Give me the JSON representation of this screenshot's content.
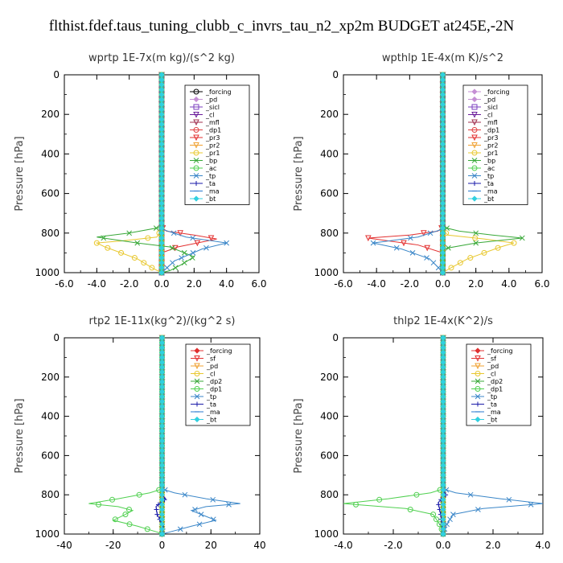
{
  "figure": {
    "title": "flthist.fdef.taus_tuning_clubb_c_invrs_tau_n2_xp2m  BUDGET at245E,-2N"
  },
  "chart_data": [
    {
      "type": "line",
      "title": "wprtp   1E-7x(m kg)/(s^2 kg)",
      "ylabel": "Pressure [hPa]",
      "xlim": [
        -6,
        6
      ],
      "ylim": [
        1000,
        0
      ],
      "xticks": [
        "-6.0",
        "-4.0",
        "-2.0",
        "0.0",
        "2.0",
        "4.0",
        "6.0"
      ],
      "yticks": [
        "0",
        "200",
        "400",
        "600",
        "800",
        "1000"
      ],
      "series": [
        {
          "name": "_forcing",
          "color": "#000000",
          "marker": "circle",
          "x": [
            0,
            0,
            0
          ],
          "y": [
            0,
            500,
            1000
          ]
        },
        {
          "name": "_pd",
          "color": "#c58fd4",
          "marker": "diamond",
          "x": [
            0,
            0,
            0
          ],
          "y": [
            0,
            500,
            1000
          ]
        },
        {
          "name": "_sicl",
          "color": "#7b3fbf",
          "marker": "square",
          "x": [
            0,
            0,
            0
          ],
          "y": [
            0,
            500,
            1000
          ]
        },
        {
          "name": "_cl",
          "color": "#6a1b9a",
          "marker": "tri",
          "x": [
            0,
            0,
            0
          ],
          "y": [
            0,
            500,
            1000
          ]
        },
        {
          "name": "_mfl",
          "color": "#a0304f",
          "marker": "tri",
          "x": [
            0,
            0,
            0
          ],
          "y": [
            0,
            500,
            1000
          ]
        },
        {
          "name": "_dp1",
          "color": "#e04040",
          "marker": "circle",
          "x": [
            0,
            0,
            0
          ],
          "y": [
            0,
            500,
            1000
          ]
        },
        {
          "name": "_pr3",
          "color": "#e33030",
          "marker": "tri",
          "x": [
            0,
            0,
            0.3,
            2.0,
            3.4,
            1.0,
            0,
            0
          ],
          "y": [
            0,
            770,
            790,
            810,
            830,
            870,
            900,
            1000
          ]
        },
        {
          "name": "_pr2",
          "color": "#f0a030",
          "marker": "tri",
          "x": [
            0,
            0,
            0
          ],
          "y": [
            0,
            500,
            1000
          ]
        },
        {
          "name": "_pr1",
          "color": "#e8c830",
          "marker": "circle",
          "x": [
            0,
            0,
            -0.3,
            -2.5,
            -4.0,
            -3.5,
            -1.5,
            -0.5,
            0
          ],
          "y": [
            0,
            780,
            820,
            840,
            850,
            870,
            930,
            980,
            1000
          ]
        },
        {
          "name": "_bp",
          "color": "#38a838",
          "marker": "x",
          "x": [
            0,
            0,
            -2.0,
            -4.0,
            -1.5,
            0.5,
            2.0,
            1.2,
            0.5,
            0
          ],
          "y": [
            0,
            770,
            800,
            820,
            850,
            870,
            920,
            960,
            990,
            1000
          ]
        },
        {
          "name": "_ac",
          "color": "#50d050",
          "marker": "circle",
          "x": [
            0,
            0,
            0
          ],
          "y": [
            0,
            500,
            1000
          ]
        },
        {
          "name": "_tp",
          "color": "#3a86c8",
          "marker": "x",
          "x": [
            0,
            0,
            1.5,
            4.0,
            2.5,
            0.8,
            0
          ],
          "y": [
            0,
            780,
            820,
            850,
            880,
            940,
            1000
          ]
        },
        {
          "name": "_ta",
          "color": "#1a1aa8",
          "marker": "plus",
          "x": [
            0,
            0,
            0
          ],
          "y": [
            0,
            500,
            1000
          ]
        },
        {
          "name": "_ma",
          "color": "#2a7ad0",
          "marker": "dash",
          "x": [
            0,
            0,
            0
          ],
          "y": [
            0,
            500,
            1000
          ]
        },
        {
          "name": "_bt",
          "color": "#30d0e0",
          "marker": "diamond",
          "x": [
            0,
            0,
            0
          ],
          "y": [
            0,
            500,
            1000
          ]
        }
      ]
    },
    {
      "type": "line",
      "title": "wpthlp   1E-4x(m K)/s^2",
      "ylabel": "Pressure [hPa]",
      "xlim": [
        -6,
        6
      ],
      "ylim": [
        1000,
        0
      ],
      "xticks": [
        "-6.0",
        "-4.0",
        "-2.0",
        "0.0",
        "2.0",
        "4.0",
        "6.0"
      ],
      "yticks": [
        "0",
        "200",
        "400",
        "600",
        "800",
        "1000"
      ],
      "series": [
        {
          "name": "_forcing",
          "color": "#c58fd4",
          "marker": "diamond",
          "x": [
            0,
            0,
            0
          ],
          "y": [
            0,
            500,
            1000
          ]
        },
        {
          "name": "_pd",
          "color": "#c58fd4",
          "marker": "diamond",
          "x": [
            0,
            0,
            0
          ],
          "y": [
            0,
            500,
            1000
          ]
        },
        {
          "name": "_sicl",
          "color": "#7b3fbf",
          "marker": "square",
          "x": [
            0,
            0,
            0
          ],
          "y": [
            0,
            500,
            1000
          ]
        },
        {
          "name": "_cl",
          "color": "#6a1b9a",
          "marker": "tri",
          "x": [
            0,
            0,
            0
          ],
          "y": [
            0,
            500,
            1000
          ]
        },
        {
          "name": "_mfl",
          "color": "#a0304f",
          "marker": "tri",
          "x": [
            0,
            0,
            0
          ],
          "y": [
            0,
            500,
            1000
          ]
        },
        {
          "name": "_dp1",
          "color": "#e04040",
          "marker": "circle",
          "x": [
            0,
            0,
            0
          ],
          "y": [
            0,
            500,
            1000
          ]
        },
        {
          "name": "_pr3",
          "color": "#e33030",
          "marker": "tri",
          "x": [
            0,
            0,
            -0.3,
            -2.0,
            -4.5,
            -1.5,
            0,
            0
          ],
          "y": [
            0,
            770,
            790,
            810,
            825,
            860,
            900,
            1000
          ]
        },
        {
          "name": "_pr2",
          "color": "#f0a030",
          "marker": "tri",
          "x": [
            0,
            0,
            0
          ],
          "y": [
            0,
            500,
            1000
          ]
        },
        {
          "name": "_pr1",
          "color": "#e8c830",
          "marker": "circle",
          "x": [
            0,
            0,
            0.3,
            2.5,
            4.3,
            3.5,
            1.5,
            0.4,
            0
          ],
          "y": [
            0,
            780,
            810,
            830,
            850,
            870,
            930,
            980,
            1000
          ]
        },
        {
          "name": "_bp",
          "color": "#38a838",
          "marker": "x",
          "x": [
            0,
            0,
            1.0,
            3.0,
            4.8,
            2.0,
            0,
            0
          ],
          "y": [
            0,
            770,
            790,
            810,
            825,
            850,
            880,
            1000
          ]
        },
        {
          "name": "_ac",
          "color": "#50d050",
          "marker": "circle",
          "x": [
            0,
            0,
            0
          ],
          "y": [
            0,
            500,
            1000
          ]
        },
        {
          "name": "_tp",
          "color": "#3a86c8",
          "marker": "x",
          "x": [
            0,
            0,
            -1.5,
            -4.2,
            -2.5,
            -0.8,
            -0.2,
            0
          ],
          "y": [
            0,
            780,
            820,
            850,
            880,
            930,
            980,
            1000
          ]
        },
        {
          "name": "_ta",
          "color": "#1a1aa8",
          "marker": "plus",
          "x": [
            0,
            0,
            0
          ],
          "y": [
            0,
            500,
            1000
          ]
        },
        {
          "name": "_ma",
          "color": "#2a7ad0",
          "marker": "dash",
          "x": [
            0,
            0,
            0
          ],
          "y": [
            0,
            500,
            1000
          ]
        },
        {
          "name": "_bt",
          "color": "#30d0e0",
          "marker": "diamond",
          "x": [
            0,
            0,
            0
          ],
          "y": [
            0,
            500,
            1000
          ]
        }
      ]
    },
    {
      "type": "line",
      "title": "rtp2   1E-11x(kg^2)/(kg^2 s)",
      "ylabel": "Pressure [hPa]",
      "xlim": [
        -40,
        40
      ],
      "ylim": [
        1000,
        0
      ],
      "xticks": [
        "-40",
        "-20",
        "0",
        "20",
        "40"
      ],
      "yticks": [
        "0",
        "200",
        "400",
        "600",
        "800",
        "1000"
      ],
      "series": [
        {
          "name": "_forcing",
          "color": "#e03030",
          "marker": "diamond",
          "x": [
            0,
            0,
            0
          ],
          "y": [
            0,
            500,
            1000
          ]
        },
        {
          "name": "_sf",
          "color": "#e33030",
          "marker": "tri",
          "x": [
            0,
            0,
            0
          ],
          "y": [
            0,
            500,
            1000
          ]
        },
        {
          "name": "_pd",
          "color": "#f0a030",
          "marker": "tri",
          "x": [
            0,
            0,
            0
          ],
          "y": [
            0,
            500,
            1000
          ]
        },
        {
          "name": "_cl",
          "color": "#e8c830",
          "marker": "circle",
          "x": [
            0,
            0,
            0
          ],
          "y": [
            0,
            500,
            1000
          ]
        },
        {
          "name": "_dp2",
          "color": "#38a838",
          "marker": "x",
          "x": [
            0,
            0,
            0
          ],
          "y": [
            0,
            500,
            1000
          ]
        },
        {
          "name": "_dp1",
          "color": "#50d050",
          "marker": "circle",
          "x": [
            0,
            0,
            -5,
            -18,
            -30,
            -18,
            -12,
            -15,
            -20,
            -10,
            -2,
            0
          ],
          "y": [
            0,
            770,
            790,
            820,
            845,
            860,
            880,
            900,
            930,
            960,
            990,
            1000
          ]
        },
        {
          "name": "_tp",
          "color": "#3a86c8",
          "marker": "x",
          "x": [
            0,
            0,
            5,
            18,
            32,
            18,
            12,
            16,
            22,
            12,
            3,
            0
          ],
          "y": [
            0,
            770,
            790,
            820,
            845,
            860,
            880,
            900,
            930,
            960,
            990,
            1000
          ]
        },
        {
          "name": "_ta",
          "color": "#1a1aa8",
          "marker": "plus",
          "x": [
            0,
            0,
            0,
            1.5,
            -2.5,
            -2,
            0.5,
            0
          ],
          "y": [
            0,
            780,
            800,
            820,
            860,
            900,
            960,
            1000
          ]
        },
        {
          "name": "_ma",
          "color": "#2a7ad0",
          "marker": "dash",
          "x": [
            0,
            0,
            0
          ],
          "y": [
            0,
            500,
            1000
          ]
        },
        {
          "name": "_bt",
          "color": "#30d0e0",
          "marker": "diamond",
          "x": [
            0,
            0,
            0
          ],
          "y": [
            0,
            500,
            1000
          ]
        }
      ]
    },
    {
      "type": "line",
      "title": "thlp2   1E-4x(K^2)/s",
      "ylabel": "Pressure [hPa]",
      "xlim": [
        -4,
        4
      ],
      "ylim": [
        1000,
        0
      ],
      "xticks": [
        "-4.0",
        "-2.0",
        "0.0",
        "2.0",
        "4.0"
      ],
      "yticks": [
        "0",
        "200",
        "400",
        "600",
        "800",
        "1000"
      ],
      "series": [
        {
          "name": "_forcing",
          "color": "#e03030",
          "marker": "diamond",
          "x": [
            0,
            0,
            0
          ],
          "y": [
            0,
            500,
            1000
          ]
        },
        {
          "name": "_sf",
          "color": "#e33030",
          "marker": "tri",
          "x": [
            0,
            0,
            0
          ],
          "y": [
            0,
            500,
            1000
          ]
        },
        {
          "name": "_pd",
          "color": "#f0a030",
          "marker": "tri",
          "x": [
            0,
            0,
            0
          ],
          "y": [
            0,
            500,
            1000
          ]
        },
        {
          "name": "_cl",
          "color": "#e8c830",
          "marker": "circle",
          "x": [
            0,
            0,
            0
          ],
          "y": [
            0,
            500,
            1000
          ]
        },
        {
          "name": "_dp2",
          "color": "#38a838",
          "marker": "x",
          "x": [
            0,
            0,
            0
          ],
          "y": [
            0,
            500,
            1000
          ]
        },
        {
          "name": "_dp1",
          "color": "#50d050",
          "marker": "circle",
          "x": [
            0,
            0,
            -0.5,
            -2.2,
            -4.0,
            -1.5,
            -0.4,
            -0.1,
            0
          ],
          "y": [
            0,
            770,
            790,
            820,
            845,
            870,
            900,
            960,
            1000
          ]
        },
        {
          "name": "_tp",
          "color": "#3a86c8",
          "marker": "x",
          "x": [
            0,
            0,
            0.5,
            2.3,
            4.0,
            1.6,
            0.4,
            0.1,
            0
          ],
          "y": [
            0,
            770,
            790,
            820,
            845,
            870,
            900,
            960,
            1000
          ]
        },
        {
          "name": "_ta",
          "color": "#1a1aa8",
          "marker": "plus",
          "x": [
            0,
            0,
            0.1,
            -0.2,
            -0.1,
            0
          ],
          "y": [
            0,
            780,
            800,
            840,
            900,
            1000
          ]
        },
        {
          "name": "_ma",
          "color": "#2a7ad0",
          "marker": "dash",
          "x": [
            0,
            0,
            0
          ],
          "y": [
            0,
            500,
            1000
          ]
        },
        {
          "name": "_bt",
          "color": "#30d0e0",
          "marker": "diamond",
          "x": [
            0,
            0,
            0
          ],
          "y": [
            0,
            500,
            1000
          ]
        }
      ]
    }
  ]
}
